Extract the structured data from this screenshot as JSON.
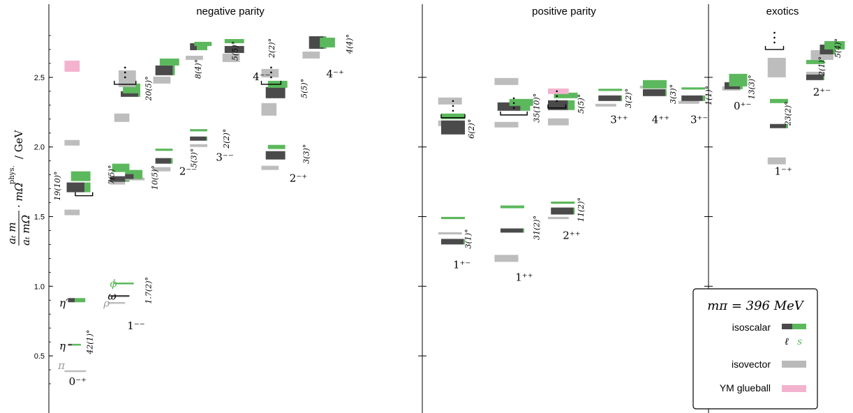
{
  "chart_data": {
    "type": "spectrum",
    "ylim": [
      0.2,
      2.9
    ],
    "yticks": [
      "0.5",
      "1.0",
      "1.5",
      "2.0",
      "2.5"
    ],
    "ylabel": {
      "frac_num": "aₜ m",
      "frac_den": "aₜ mΩ",
      "mult": "· mΩ",
      "sup": "phys.",
      "unit": "/ GeV"
    },
    "colors": {
      "light": "#4a4a4a",
      "strange": "#5cb85c",
      "isovector": "#b9b9b9",
      "glueball": "#f3b3cf",
      "bracket": "#000000"
    },
    "panels": [
      {
        "label": "negative parity"
      },
      {
        "label": "positive parity"
      },
      {
        "label": "exotics"
      }
    ],
    "jpc_labels": [
      {
        "text": "0⁻⁺",
        "x": 0.3,
        "y": 0.29
      },
      {
        "text": "1⁻⁻",
        "x": 1.65,
        "y": 0.69
      },
      {
        "text": "2⁻⁻",
        "x": 2.85,
        "y": 1.8
      },
      {
        "text": "3⁻⁻",
        "x": 3.7,
        "y": 1.9
      },
      {
        "text": "4⁻⁻",
        "x": 4.55,
        "y": 2.48
      },
      {
        "text": "2⁻⁺",
        "x": 5.4,
        "y": 1.75
      },
      {
        "text": "4⁻⁺",
        "x": 6.25,
        "y": 2.5
      },
      {
        "text": "1⁺⁻",
        "x": 0.4,
        "y": 1.13
      },
      {
        "text": "1⁺⁺",
        "x": 1.45,
        "y": 1.04
      },
      {
        "text": "2⁺⁺",
        "x": 2.25,
        "y": 1.34
      },
      {
        "text": "3⁺⁺",
        "x": 3.05,
        "y": 2.17
      },
      {
        "text": "4⁺⁺",
        "x": 3.75,
        "y": 2.17
      },
      {
        "text": "3⁺⁻",
        "x": 4.4,
        "y": 2.17
      },
      {
        "text": "0⁺⁻",
        "x": 0.4,
        "y": 2.27
      },
      {
        "text": "1⁻⁺",
        "x": 1.3,
        "y": 1.8
      },
      {
        "text": "2⁺⁻",
        "x": 2.15,
        "y": 2.37
      }
    ],
    "state_labels": [
      {
        "text": "π",
        "x": 0.05,
        "y": 0.43,
        "cls": "g"
      },
      {
        "text": "η",
        "x": 0.08,
        "y": 0.57,
        "cls": "k"
      },
      {
        "text": "η′",
        "x": 0.08,
        "y": 0.88,
        "cls": "k"
      },
      {
        "text": "ρ",
        "x": 1.1,
        "y": 0.88,
        "cls": "g"
      },
      {
        "text": "ω",
        "x": 1.2,
        "y": 0.93,
        "cls": "k"
      },
      {
        "text": "ϕ",
        "x": 1.25,
        "y": 1.02,
        "cls": "s"
      }
    ],
    "angles": [
      {
        "text": "42(1)°",
        "p": 0,
        "x": 0.85,
        "y": 0.6
      },
      {
        "text": "19(10)°",
        "p": 0,
        "x": 0.1,
        "y": 1.72
      },
      {
        "text": "7(5)°",
        "p": 0,
        "x": 1.35,
        "y": 1.8
      },
      {
        "text": "1.7(2)°",
        "p": 0,
        "x": 2.2,
        "y": 0.97
      },
      {
        "text": "10(5)°",
        "p": 0,
        "x": 2.35,
        "y": 1.78
      },
      {
        "text": "20(5)°",
        "p": 0,
        "x": 2.2,
        "y": 2.42
      },
      {
        "text": "5(3)°",
        "p": 0,
        "x": 3.25,
        "y": 1.92
      },
      {
        "text": "8(4)°",
        "p": 0,
        "x": 3.35,
        "y": 2.56
      },
      {
        "text": "2(2)°",
        "p": 0,
        "x": 4.0,
        "y": 2.06
      },
      {
        "text": "5(5)°",
        "p": 0,
        "x": 4.2,
        "y": 2.69
      },
      {
        "text": "2(2)°",
        "p": 0,
        "x": 5.05,
        "y": 2.71
      },
      {
        "text": "5(5)°",
        "p": 0,
        "x": 5.8,
        "y": 2.42
      },
      {
        "text": "3(3)°",
        "p": 0,
        "x": 5.85,
        "y": 1.95
      },
      {
        "text": "4(4)°",
        "p": 0,
        "x": 6.85,
        "y": 2.74
      },
      {
        "text": "3(1)°",
        "p": 1,
        "x": 0.7,
        "y": 1.34
      },
      {
        "text": "6(2)°",
        "p": 1,
        "x": 0.75,
        "y": 2.13
      },
      {
        "text": "31(2)°",
        "p": 1,
        "x": 1.85,
        "y": 1.42
      },
      {
        "text": "35(10)°",
        "p": 1,
        "x": 1.85,
        "y": 2.28
      },
      {
        "text": "11(2)°",
        "p": 1,
        "x": 2.6,
        "y": 1.55
      },
      {
        "text": "5(5)°",
        "p": 1,
        "x": 2.6,
        "y": 2.31
      },
      {
        "text": "3(2)°",
        "p": 1,
        "x": 3.4,
        "y": 2.35
      },
      {
        "text": "3(3)°",
        "p": 1,
        "x": 4.15,
        "y": 2.38
      },
      {
        "text": "1(1)°",
        "p": 1,
        "x": 4.75,
        "y": 2.37
      },
      {
        "text": "13(3)°",
        "p": 2,
        "x": 0.85,
        "y": 2.43
      },
      {
        "text": "23(2)°",
        "p": 2,
        "x": 1.65,
        "y": 2.24
      },
      {
        "text": "2(1)°",
        "p": 2,
        "x": 2.4,
        "y": 2.58
      },
      {
        "text": "5(4)°",
        "p": 2,
        "x": 2.75,
        "y": 2.71
      }
    ],
    "states": [
      {
        "p": 0,
        "k": "g",
        "x0": 0.2,
        "x1": 0.7,
        "m": 0.39,
        "e": 0.003
      },
      {
        "p": 0,
        "k": "d",
        "x0": 0.28,
        "x1": 0.58,
        "m": 0.58,
        "e": 0.003,
        "f": 0.3
      },
      {
        "p": 0,
        "k": "d",
        "x0": 0.28,
        "x1": 0.68,
        "m": 0.9,
        "e": 0.015,
        "f": 0.4
      },
      {
        "p": 0,
        "k": "g",
        "x0": 0.2,
        "x1": 0.55,
        "m": 1.53,
        "e": 0.02
      },
      {
        "p": 0,
        "k": "g",
        "x0": 0.2,
        "x1": 0.55,
        "m": 2.03,
        "e": 0.02
      },
      {
        "p": 0,
        "k": "d",
        "x0": 0.25,
        "x1": 0.8,
        "m": 1.71,
        "e": 0.035,
        "f": 0.75
      },
      {
        "p": 0,
        "k": "s",
        "x0": 0.35,
        "x1": 0.8,
        "m": 1.79,
        "e": 0.035
      },
      {
        "p": 0,
        "k": "y",
        "x0": 0.2,
        "x1": 0.55,
        "m": 2.58,
        "e": 0.04
      },
      {
        "p": 0,
        "k": "g",
        "x0": 1.2,
        "x1": 1.6,
        "m": 0.88,
        "e": 0.004
      },
      {
        "p": 0,
        "k": "d",
        "x0": 1.25,
        "x1": 1.7,
        "m": 0.93,
        "e": 0.003,
        "f": 1.0
      },
      {
        "p": 0,
        "k": "s",
        "x0": 1.35,
        "x1": 1.8,
        "m": 1.02,
        "e": 0.003
      },
      {
        "p": 0,
        "k": "g",
        "x0": 1.25,
        "x1": 1.6,
        "m": 1.74,
        "e": 0.01
      },
      {
        "p": 0,
        "k": "d",
        "x0": 1.25,
        "x1": 1.7,
        "m": 1.77,
        "e": 0.02,
        "f": 0.8
      },
      {
        "p": 0,
        "k": "s",
        "x0": 1.3,
        "x1": 1.7,
        "m": 1.85,
        "e": 0.03
      },
      {
        "p": 0,
        "k": "g",
        "x0": 1.6,
        "x1": 2.05,
        "m": 1.77,
        "e": 0.01
      },
      {
        "p": 0,
        "k": "d",
        "x0": 1.6,
        "x1": 2.0,
        "m": 1.79,
        "e": 0.02,
        "f": 0.5
      },
      {
        "p": 0,
        "k": "s",
        "x0": 1.6,
        "x1": 2.0,
        "m": 1.82,
        "e": 0.015
      },
      {
        "p": 0,
        "k": "g",
        "x0": 1.35,
        "x1": 1.7,
        "m": 2.21,
        "e": 0.03
      },
      {
        "p": 0,
        "k": "d",
        "x0": 1.5,
        "x1": 1.95,
        "m": 2.38,
        "e": 0.02,
        "f": 0.9
      },
      {
        "p": 0,
        "k": "s",
        "x0": 1.55,
        "x1": 1.95,
        "m": 2.42,
        "e": 0.035
      },
      {
        "p": 0,
        "k": "g",
        "x0": 1.45,
        "x1": 1.85,
        "m": 2.49,
        "e": 0.06
      },
      {
        "p": 0,
        "k": "g",
        "x0": 2.25,
        "x1": 2.65,
        "m": 1.84,
        "e": 0.015
      },
      {
        "p": 0,
        "k": "d",
        "x0": 2.3,
        "x1": 2.7,
        "m": 1.9,
        "e": 0.02,
        "f": 0.9
      },
      {
        "p": 0,
        "k": "s",
        "x0": 2.3,
        "x1": 2.7,
        "m": 1.98,
        "e": 0.008
      },
      {
        "p": 0,
        "k": "g",
        "x0": 2.25,
        "x1": 2.65,
        "m": 2.48,
        "e": 0.025
      },
      {
        "p": 0,
        "k": "d",
        "x0": 2.3,
        "x1": 2.75,
        "m": 2.55,
        "e": 0.035,
        "f": 0.9
      },
      {
        "p": 0,
        "k": "s",
        "x0": 2.4,
        "x1": 2.85,
        "m": 2.61,
        "e": 0.025
      },
      {
        "p": 0,
        "k": "g",
        "x0": 3.1,
        "x1": 3.5,
        "m": 2.01,
        "e": 0.01
      },
      {
        "p": 0,
        "k": "d",
        "x0": 3.1,
        "x1": 3.5,
        "m": 2.06,
        "e": 0.015,
        "f": 0.95
      },
      {
        "p": 0,
        "k": "s",
        "x0": 3.1,
        "x1": 3.5,
        "m": 2.12,
        "e": 0.008
      },
      {
        "p": 0,
        "k": "g",
        "x0": 3.0,
        "x1": 3.4,
        "m": 2.64,
        "e": 0.015
      },
      {
        "p": 0,
        "k": "d",
        "x0": 3.1,
        "x1": 3.5,
        "m": 2.72,
        "e": 0.025,
        "f": 0.4
      },
      {
        "p": 0,
        "k": "s",
        "x0": 3.2,
        "x1": 3.6,
        "m": 2.74,
        "e": 0.015
      },
      {
        "p": 0,
        "k": "g",
        "x0": 3.85,
        "x1": 4.25,
        "m": 2.64,
        "e": 0.03
      },
      {
        "p": 0,
        "k": "d",
        "x0": 3.9,
        "x1": 4.35,
        "m": 2.7,
        "e": 0.025,
        "f": 1.0
      },
      {
        "p": 0,
        "k": "s",
        "x0": 3.9,
        "x1": 4.35,
        "m": 2.76,
        "e": 0.015
      },
      {
        "p": 0,
        "k": "g",
        "x0": 4.75,
        "x1": 5.15,
        "m": 1.85,
        "e": 0.015
      },
      {
        "p": 0,
        "k": "d",
        "x0": 4.85,
        "x1": 5.3,
        "m": 1.94,
        "e": 0.03,
        "f": 1.0
      },
      {
        "p": 0,
        "k": "s",
        "x0": 4.9,
        "x1": 5.3,
        "m": 2.0,
        "e": 0.015
      },
      {
        "p": 0,
        "k": "g",
        "x0": 4.75,
        "x1": 5.1,
        "m": 2.27,
        "e": 0.045
      },
      {
        "p": 0,
        "k": "d",
        "x0": 4.85,
        "x1": 5.3,
        "m": 2.39,
        "e": 0.04,
        "f": 1.0
      },
      {
        "p": 0,
        "k": "s",
        "x0": 4.9,
        "x1": 5.35,
        "m": 2.45,
        "e": 0.025
      },
      {
        "p": 0,
        "k": "g",
        "x0": 4.75,
        "x1": 5.15,
        "m": 2.53,
        "e": 0.03
      },
      {
        "p": 0,
        "k": "g",
        "x0": 5.7,
        "x1": 6.1,
        "m": 2.66,
        "e": 0.025
      },
      {
        "p": 0,
        "k": "d",
        "x0": 5.85,
        "x1": 6.25,
        "m": 2.75,
        "e": 0.045,
        "f": 0.85
      },
      {
        "p": 0,
        "k": "s",
        "x0": 6.1,
        "x1": 6.45,
        "m": 2.75,
        "e": 0.035
      },
      {
        "p": 1,
        "k": "g",
        "x0": 0.15,
        "x1": 0.55,
        "m": 1.38,
        "e": 0.008
      },
      {
        "p": 1,
        "k": "d",
        "x0": 0.2,
        "x1": 0.6,
        "m": 1.32,
        "e": 0.02,
        "f": 0.95
      },
      {
        "p": 1,
        "k": "s",
        "x0": 0.2,
        "x1": 0.6,
        "m": 1.49,
        "e": 0.008
      },
      {
        "p": 1,
        "k": "g",
        "x0": 0.15,
        "x1": 0.55,
        "m": 2.17,
        "e": 0.02
      },
      {
        "p": 1,
        "k": "d",
        "x0": 0.2,
        "x1": 0.6,
        "m": 2.14,
        "e": 0.05,
        "f": 1.0
      },
      {
        "p": 1,
        "k": "s",
        "x0": 0.2,
        "x1": 0.6,
        "m": 2.22,
        "e": 0.02
      },
      {
        "p": 1,
        "k": "g",
        "x0": 0.15,
        "x1": 0.55,
        "m": 2.33,
        "e": 0.025
      },
      {
        "p": 1,
        "k": "g",
        "x0": 1.1,
        "x1": 1.5,
        "m": 1.2,
        "e": 0.025
      },
      {
        "p": 1,
        "k": "d",
        "x0": 1.2,
        "x1": 1.6,
        "m": 1.4,
        "e": 0.015,
        "f": 0.95
      },
      {
        "p": 1,
        "k": "s",
        "x0": 1.2,
        "x1": 1.6,
        "m": 1.57,
        "e": 0.01
      },
      {
        "p": 1,
        "k": "g",
        "x0": 1.1,
        "x1": 1.5,
        "m": 2.16,
        "e": 0.02
      },
      {
        "p": 1,
        "k": "g",
        "x0": 1.1,
        "x1": 1.5,
        "m": 2.47,
        "e": 0.025
      },
      {
        "p": 1,
        "k": "d",
        "x0": 1.15,
        "x1": 1.7,
        "m": 2.29,
        "e": 0.03,
        "f": 0.7
      },
      {
        "p": 1,
        "k": "s",
        "x0": 1.35,
        "x1": 1.75,
        "m": 2.32,
        "e": 0.025
      },
      {
        "p": 1,
        "k": "g",
        "x0": 2.0,
        "x1": 2.35,
        "m": 1.49,
        "e": 0.008
      },
      {
        "p": 1,
        "k": "d",
        "x0": 2.05,
        "x1": 2.45,
        "m": 1.54,
        "e": 0.025,
        "f": 0.95
      },
      {
        "p": 1,
        "k": "s",
        "x0": 2.05,
        "x1": 2.45,
        "m": 1.6,
        "e": 0.008
      },
      {
        "p": 1,
        "k": "g",
        "x0": 2.0,
        "x1": 2.35,
        "m": 2.18,
        "e": 0.025
      },
      {
        "p": 1,
        "k": "d",
        "x0": 2.0,
        "x1": 2.45,
        "m": 2.3,
        "e": 0.035,
        "f": 0.75
      },
      {
        "p": 1,
        "k": "s",
        "x0": 2.1,
        "x1": 2.5,
        "m": 2.37,
        "e": 0.02
      },
      {
        "p": 1,
        "k": "y",
        "x0": 2.0,
        "x1": 2.35,
        "m": 2.4,
        "e": 0.02
      },
      {
        "p": 1,
        "k": "g",
        "x0": 2.8,
        "x1": 3.15,
        "m": 2.3,
        "e": 0.01
      },
      {
        "p": 1,
        "k": "d",
        "x0": 2.85,
        "x1": 3.25,
        "m": 2.35,
        "e": 0.02,
        "f": 0.95
      },
      {
        "p": 1,
        "k": "s",
        "x0": 2.85,
        "x1": 3.25,
        "m": 2.41,
        "e": 0.008
      },
      {
        "p": 1,
        "k": "g",
        "x0": 3.55,
        "x1": 3.95,
        "m": 2.43,
        "e": 0.01
      },
      {
        "p": 1,
        "k": "d",
        "x0": 3.6,
        "x1": 4.0,
        "m": 2.39,
        "e": 0.025,
        "f": 0.95
      },
      {
        "p": 1,
        "k": "s",
        "x0": 3.6,
        "x1": 4.0,
        "m": 2.45,
        "e": 0.03
      },
      {
        "p": 1,
        "k": "g",
        "x0": 4.2,
        "x1": 4.55,
        "m": 2.32,
        "e": 0.01
      },
      {
        "p": 1,
        "k": "d",
        "x0": 4.25,
        "x1": 4.65,
        "m": 2.35,
        "e": 0.02,
        "f": 0.9
      },
      {
        "p": 1,
        "k": "s",
        "x0": 4.25,
        "x1": 4.65,
        "m": 2.42,
        "e": 0.008
      },
      {
        "p": 2,
        "k": "g",
        "x0": 0.15,
        "x1": 0.55,
        "m": 2.42,
        "e": 0.015
      },
      {
        "p": 2,
        "k": "d",
        "x0": 0.2,
        "x1": 0.6,
        "m": 2.44,
        "e": 0.025,
        "f": 0.85
      },
      {
        "p": 2,
        "k": "s",
        "x0": 0.3,
        "x1": 0.7,
        "m": 2.48,
        "e": 0.045
      },
      {
        "p": 2,
        "k": "g",
        "x0": 1.15,
        "x1": 1.55,
        "m": 1.9,
        "e": 0.025
      },
      {
        "p": 2,
        "k": "d",
        "x0": 1.2,
        "x1": 1.6,
        "m": 2.15,
        "e": 0.015,
        "f": 0.9
      },
      {
        "p": 2,
        "k": "s",
        "x0": 1.2,
        "x1": 1.6,
        "m": 2.33,
        "e": 0.015
      },
      {
        "p": 2,
        "k": "g",
        "x0": 1.15,
        "x1": 1.55,
        "m": 2.57,
        "e": 0.07
      },
      {
        "p": 2,
        "k": "g",
        "x0": 2.0,
        "x1": 2.4,
        "m": 2.53,
        "e": 0.01
      },
      {
        "p": 2,
        "k": "d",
        "x0": 2.0,
        "x1": 2.4,
        "m": 2.5,
        "e": 0.02,
        "f": 0.95
      },
      {
        "p": 2,
        "k": "s",
        "x0": 2.0,
        "x1": 2.4,
        "m": 2.61,
        "e": 0.015
      },
      {
        "p": 2,
        "k": "g",
        "x0": 2.1,
        "x1": 2.6,
        "m": 2.66,
        "e": 0.035
      },
      {
        "p": 2,
        "k": "d",
        "x0": 2.3,
        "x1": 2.65,
        "m": 2.7,
        "e": 0.035,
        "f": 0.85
      },
      {
        "p": 2,
        "k": "s",
        "x0": 2.4,
        "x1": 2.85,
        "m": 2.73,
        "e": 0.03
      }
    ],
    "brackets": [
      {
        "p": 0,
        "x0": 0.45,
        "x1": 0.85,
        "y": 1.65,
        "dots": false
      },
      {
        "p": 0,
        "x0": 1.35,
        "x1": 1.85,
        "y": 2.45,
        "dots": true
      },
      {
        "p": 0,
        "x0": 4.75,
        "x1": 5.2,
        "y": 2.45,
        "dots": true
      },
      {
        "p": 1,
        "x0": 0.2,
        "x1": 0.6,
        "y": 2.21,
        "dots": true
      },
      {
        "p": 1,
        "x0": 1.2,
        "x1": 1.65,
        "y": 2.23,
        "dots": true
      },
      {
        "p": 1,
        "x0": 2.0,
        "x1": 2.3,
        "y": 2.28,
        "dots": true
      },
      {
        "p": 2,
        "x0": 1.1,
        "x1": 1.5,
        "y": 2.7,
        "dots": true
      }
    ],
    "legend": {
      "title": "mπ = 396 MeV",
      "isoscalar": "isoscalar",
      "ell": "ℓ",
      "s": "s",
      "isovector": "isovector",
      "glueball": "YM glueball"
    }
  }
}
